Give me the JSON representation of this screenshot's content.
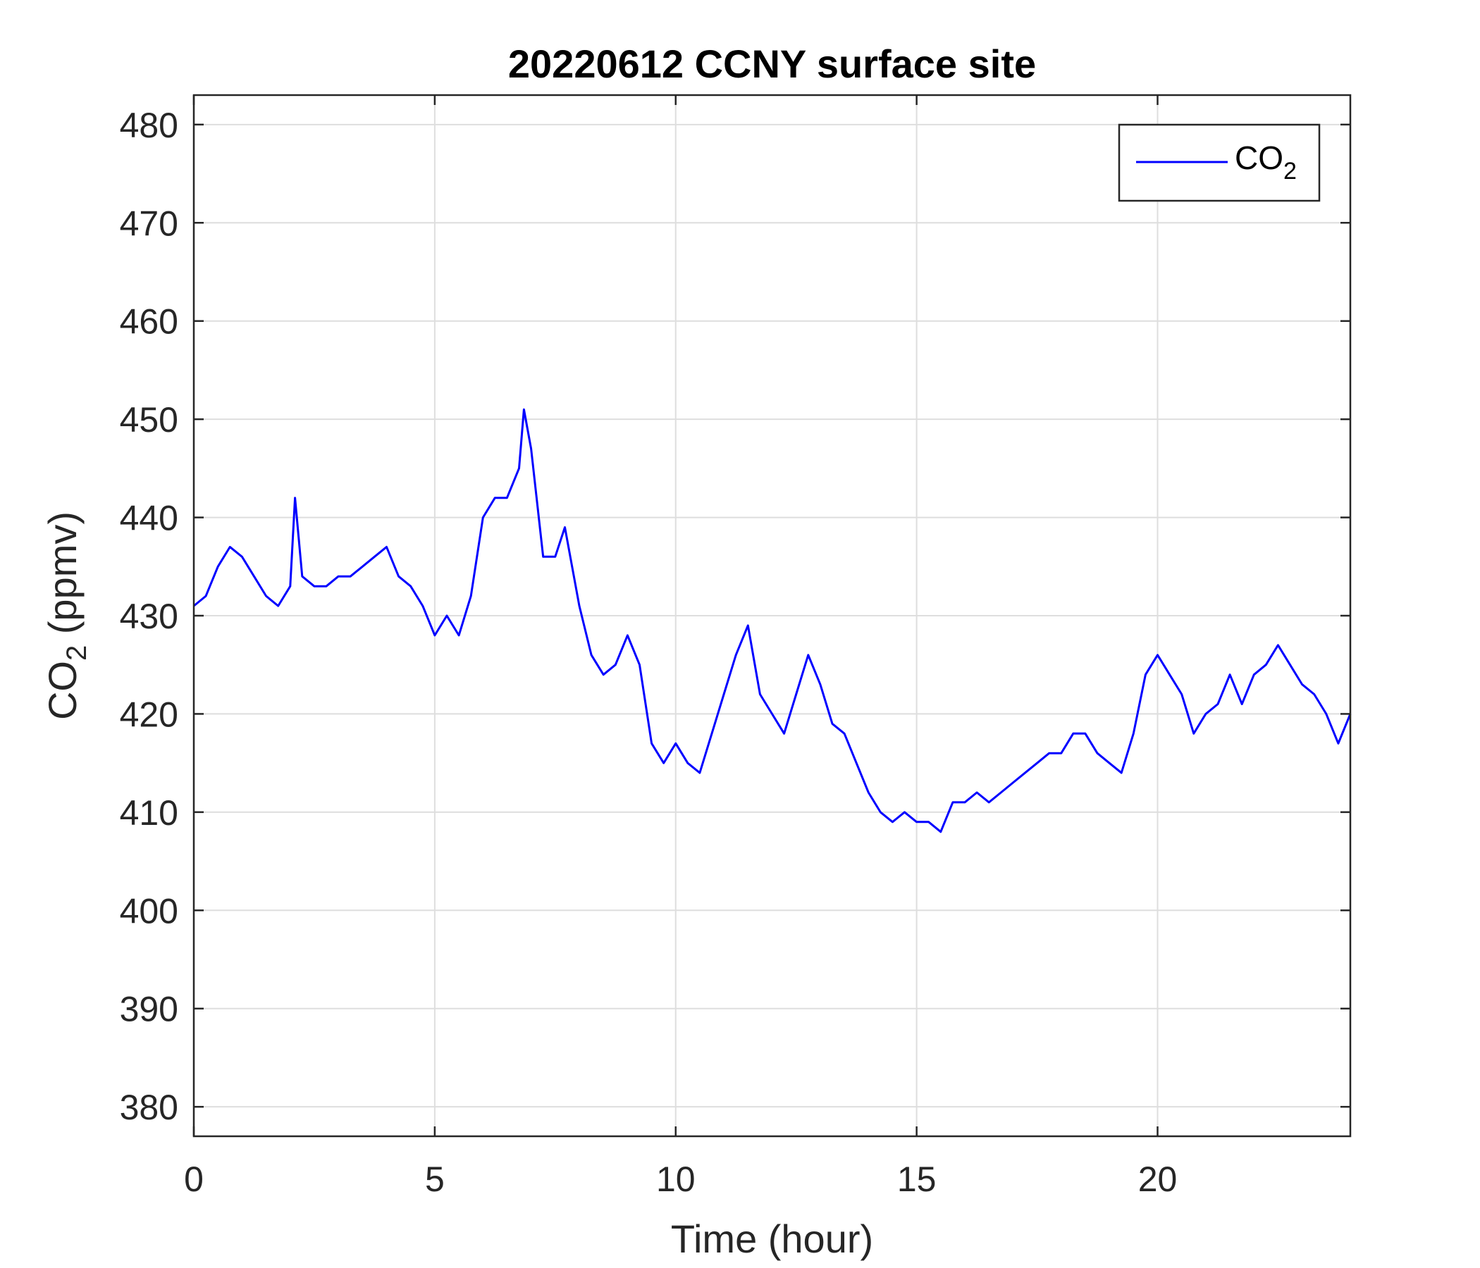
{
  "chart_data": {
    "type": "line",
    "title": "20220612 CCNY surface site",
    "xlabel": "Time (hour)",
    "ylabel": {
      "main": "CO",
      "sub": "2",
      "unit": " (ppmv)"
    },
    "xlim": [
      0,
      24
    ],
    "ylim": [
      377,
      483
    ],
    "xticks": [
      0,
      5,
      10,
      15,
      20
    ],
    "yticks": [
      380,
      390,
      400,
      410,
      420,
      430,
      440,
      450,
      460,
      470,
      480
    ],
    "grid": true,
    "legend": {
      "position": "top-right",
      "entries": [
        {
          "text": "CO",
          "sub": "2"
        }
      ]
    },
    "series": [
      {
        "name": "CO2",
        "color": "#0000ff",
        "x": [
          0.0,
          0.25,
          0.5,
          0.75,
          1.0,
          1.25,
          1.5,
          1.75,
          2.0,
          2.1,
          2.25,
          2.5,
          2.75,
          3.0,
          3.25,
          3.5,
          3.75,
          4.0,
          4.25,
          4.5,
          4.75,
          5.0,
          5.25,
          5.5,
          5.75,
          6.0,
          6.25,
          6.5,
          6.75,
          6.85,
          7.0,
          7.25,
          7.5,
          7.7,
          8.0,
          8.25,
          8.5,
          8.75,
          9.0,
          9.25,
          9.5,
          9.75,
          10.0,
          10.25,
          10.5,
          10.75,
          11.0,
          11.25,
          11.5,
          11.75,
          12.0,
          12.25,
          12.5,
          12.75,
          13.0,
          13.25,
          13.5,
          13.75,
          14.0,
          14.25,
          14.5,
          14.75,
          15.0,
          15.25,
          15.5,
          15.75,
          16.0,
          16.25,
          16.5,
          16.75,
          17.0,
          17.25,
          17.5,
          17.75,
          18.0,
          18.25,
          18.5,
          18.75,
          19.0,
          19.25,
          19.5,
          19.75,
          20.0,
          20.25,
          20.5,
          20.75,
          21.0,
          21.25,
          21.5,
          21.75,
          22.0,
          22.25,
          22.5,
          22.75,
          23.0,
          23.25,
          23.5,
          23.75,
          24.0
        ],
        "values": [
          431,
          432,
          435,
          437,
          436,
          434,
          432,
          431,
          433,
          442,
          434,
          433,
          433,
          434,
          434,
          435,
          436,
          437,
          434,
          433,
          431,
          428,
          430,
          428,
          432,
          440,
          442,
          442,
          445,
          451,
          447,
          436,
          436,
          439,
          431,
          426,
          424,
          425,
          428,
          425,
          417,
          415,
          417,
          415,
          414,
          418,
          422,
          426,
          429,
          422,
          420,
          418,
          422,
          426,
          423,
          419,
          418,
          415,
          412,
          410,
          409,
          410,
          409,
          409,
          408,
          411,
          411,
          412,
          411,
          412,
          413,
          414,
          415,
          416,
          416,
          418,
          418,
          416,
          415,
          414,
          418,
          424,
          426,
          424,
          422,
          418,
          420,
          421,
          424,
          421,
          424,
          425,
          427,
          425,
          423,
          422,
          420,
          417,
          420
        ]
      }
    ]
  }
}
